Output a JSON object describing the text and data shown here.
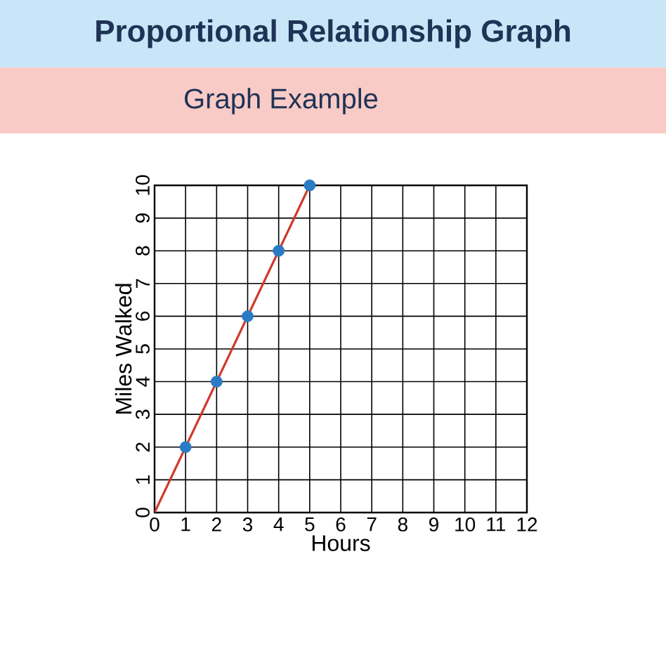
{
  "chart_data": {
    "type": "line",
    "title": "Proportional Relationship Graph",
    "subtitle": "Graph Example",
    "xlabel": "Hours",
    "ylabel": "Miles Walked",
    "series": [
      {
        "color": "#d0392b",
        "x": [
          0,
          5
        ],
        "values": [
          0,
          10
        ]
      },
      {
        "type": "scatter",
        "color": "#2b7bc4",
        "marker": "circle",
        "x": [
          1,
          2,
          3,
          4,
          5
        ],
        "values": [
          2,
          4,
          6,
          8,
          10
        ]
      }
    ],
    "xlim": [
      0,
      12
    ],
    "ylim": [
      0,
      10
    ],
    "xticks": [
      0,
      1,
      2,
      3,
      4,
      5,
      6,
      7,
      8,
      9,
      10,
      11,
      12
    ],
    "yticks": [
      0,
      1,
      2,
      3,
      4,
      5,
      6,
      7,
      8,
      9,
      10
    ],
    "grid": true
  }
}
